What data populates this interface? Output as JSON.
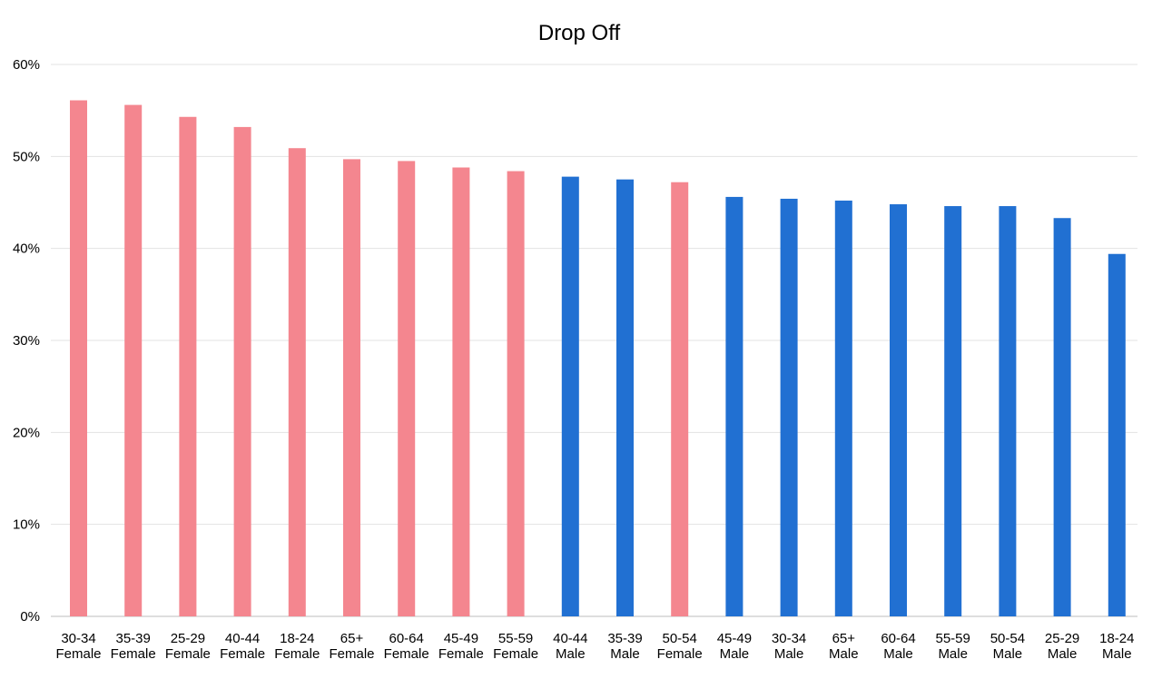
{
  "chart_data": {
    "type": "bar",
    "title": "Drop Off",
    "xlabel": "",
    "ylabel": "",
    "ylim": [
      0,
      60
    ],
    "yticks": [
      "0%",
      "10%",
      "20%",
      "30%",
      "40%",
      "50%",
      "60%"
    ],
    "grid": true,
    "legend": "none",
    "categories": [
      [
        "30-34",
        "Female"
      ],
      [
        "35-39",
        "Female"
      ],
      [
        "25-29",
        "Female"
      ],
      [
        "40-44",
        "Female"
      ],
      [
        "18-24",
        "Female"
      ],
      [
        "65+",
        "Female"
      ],
      [
        "60-64",
        "Female"
      ],
      [
        "45-49",
        "Female"
      ],
      [
        "55-59",
        "Female"
      ],
      [
        "40-44",
        "Male"
      ],
      [
        "35-39",
        "Male"
      ],
      [
        "50-54",
        "Female"
      ],
      [
        "45-49",
        "Male"
      ],
      [
        "30-34",
        "Male"
      ],
      [
        "65+",
        "Male"
      ],
      [
        "60-64",
        "Male"
      ],
      [
        "55-59",
        "Male"
      ],
      [
        "50-54",
        "Male"
      ],
      [
        "25-29",
        "Male"
      ],
      [
        "18-24",
        "Male"
      ]
    ],
    "values": [
      56.1,
      55.6,
      54.3,
      53.2,
      50.9,
      49.7,
      49.5,
      48.8,
      48.4,
      47.8,
      47.5,
      47.2,
      45.6,
      45.4,
      45.2,
      44.8,
      44.6,
      44.6,
      43.3,
      39.4
    ],
    "colors": {
      "Female": "#f4868f",
      "Male": "#2170d2"
    }
  }
}
